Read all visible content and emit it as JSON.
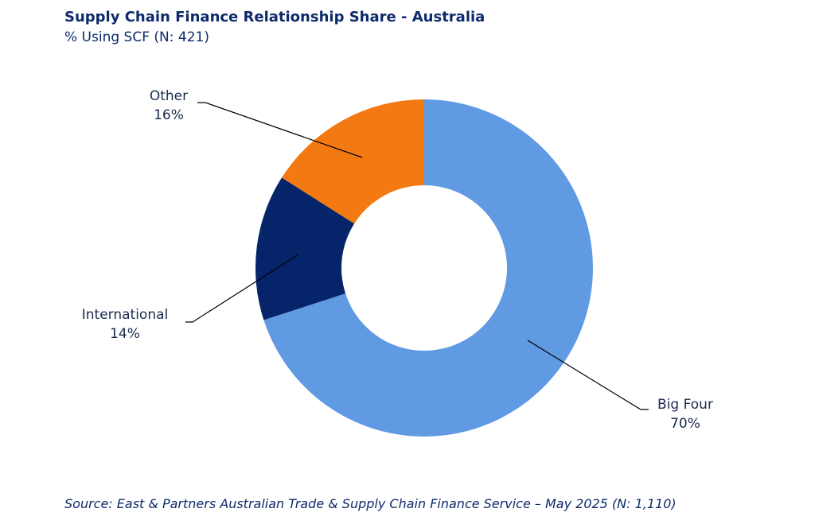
{
  "title": "Supply Chain Finance Relationship Share - Australia",
  "subtitle": "% Using SCF (N: 421)",
  "source": "Source: East & Partners Australian Trade & Supply Chain Finance Service – May 2025 (N: 1,110)",
  "chart_data": {
    "type": "pie",
    "variant": "donut",
    "start_angle_deg": 0,
    "direction": "clockwise",
    "categories": [
      "Big Four",
      "International",
      "Other"
    ],
    "values": [
      70,
      14,
      16
    ],
    "value_labels": [
      "70%",
      "14%",
      "16%"
    ],
    "colors": [
      "#5f9ae3",
      "#06246a",
      "#f37a13"
    ],
    "legend": "none",
    "label_color": "#1a2a4f"
  }
}
